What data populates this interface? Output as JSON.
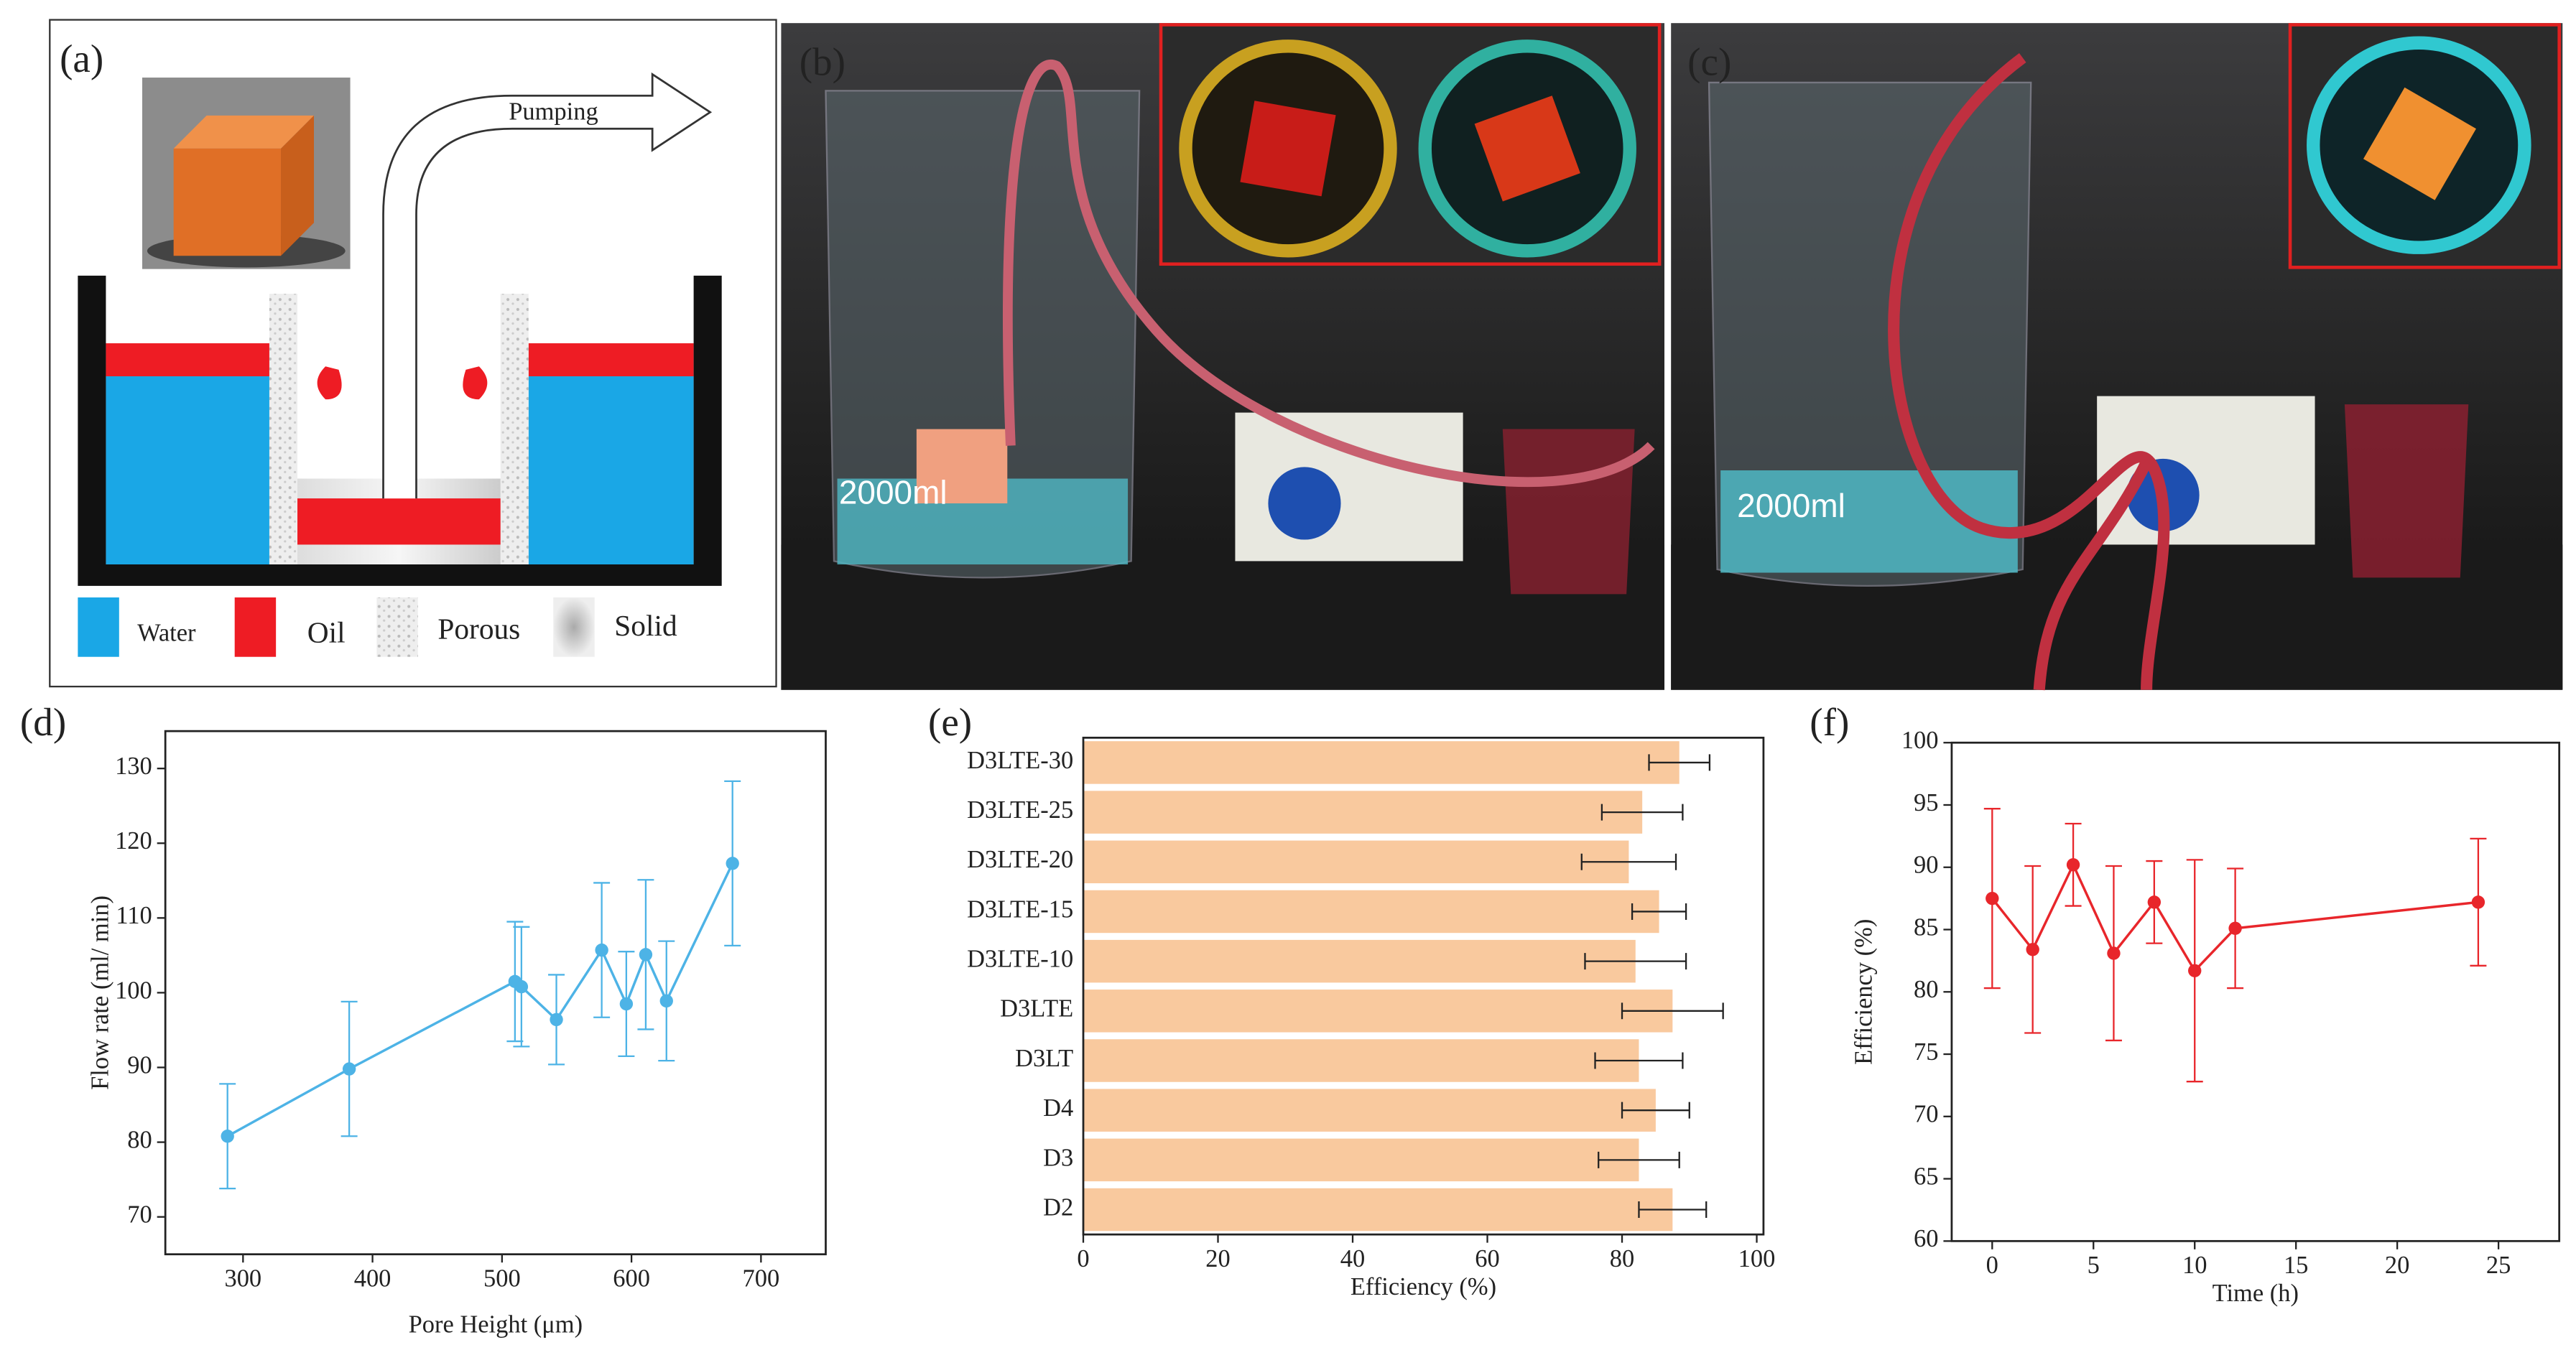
{
  "panels": {
    "a": {
      "label": "(a)",
      "arrow": "Pumping",
      "legend": [
        "Water",
        "Oil",
        "Porous",
        "Solid"
      ]
    },
    "b": {
      "label": "(b)",
      "beaker": "2000ml"
    },
    "c": {
      "label": "(c)",
      "beaker": "2000ml"
    }
  },
  "chart_data": [
    {
      "type": "errorline",
      "label": "(d)",
      "x_label": "Pore Height (μm)",
      "y_label": "Flow rate (ml/ min)",
      "x": [
        288,
        382,
        510,
        515,
        542,
        577,
        596,
        611,
        627,
        678
      ],
      "values": [
        80.8,
        89.8,
        101.5,
        100.8,
        96.4,
        105.7,
        98.5,
        105.1,
        98.9,
        117.3
      ],
      "errors": [
        7,
        9,
        8,
        8,
        6,
        9,
        7,
        10,
        8,
        11
      ],
      "color": "#4db3e6",
      "xlim": [
        240,
        750
      ],
      "xticks": [
        300,
        400,
        500,
        600,
        700
      ],
      "ylim": [
        65,
        135
      ],
      "yticks": [
        70,
        80,
        90,
        100,
        110,
        120,
        130
      ]
    },
    {
      "type": "barh",
      "label": "(e)",
      "x_label": "Efficiency (%)",
      "categories": [
        "D3LTE-30",
        "D3LTE-25",
        "D3LTE-20",
        "D3LTE-15",
        "D3LTE-10",
        "D3LTE",
        "D3LT",
        "D4",
        "D3",
        "D2"
      ],
      "values": [
        88.5,
        83,
        81,
        85.5,
        82,
        87.5,
        82.5,
        85,
        82.5,
        87.5
      ],
      "errors": [
        4.5,
        6,
        7,
        4,
        7.5,
        7.5,
        6.5,
        5,
        6,
        5
      ],
      "color": "#f9c99e",
      "xlim": [
        0,
        101
      ],
      "xticks": [
        0,
        20,
        40,
        60,
        80,
        100
      ]
    },
    {
      "type": "errorline",
      "label": "(f)",
      "x_label": "Time (h)",
      "y_label": "Efficiency (%)",
      "x": [
        0,
        2,
        4,
        6,
        8,
        10,
        12,
        24
      ],
      "values": [
        87.5,
        83.4,
        90.2,
        83.1,
        87.2,
        81.7,
        85.1,
        87.2
      ],
      "errors": [
        7.2,
        6.7,
        3.3,
        7,
        3.3,
        8.9,
        4.8,
        5.1
      ],
      "color": "#e8262b",
      "xlim": [
        -2,
        28
      ],
      "xticks": [
        0,
        5,
        10,
        15,
        20,
        25
      ],
      "ylim": [
        60,
        100
      ],
      "yticks": [
        60,
        65,
        70,
        75,
        80,
        85,
        90,
        95,
        100
      ]
    }
  ]
}
